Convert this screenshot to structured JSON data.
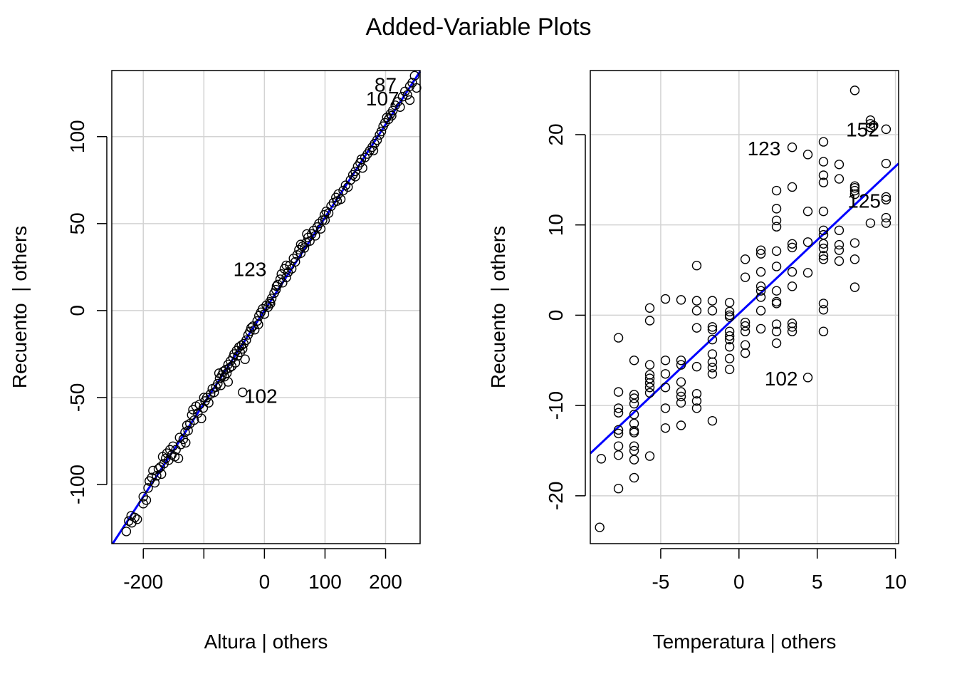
{
  "figure": {
    "title": "Added-Variable Plots"
  },
  "colors": {
    "fit_line": "#0000ff",
    "grid": "#d3d3d3",
    "points": "#000000",
    "frame": "#000000"
  },
  "chart_data": [
    {
      "type": "scatter",
      "title": "",
      "xlabel": "Altura | others",
      "ylabel": "Recuento  | others",
      "xlim": [
        -252,
        257
      ],
      "ylim": [
        -134,
        138
      ],
      "xticks": [
        -200,
        -100,
        0,
        100,
        200
      ],
      "xtick_labels": [
        "-200",
        "",
        "0",
        "100",
        "200"
      ],
      "yticks": [
        -100,
        -50,
        0,
        50,
        100
      ],
      "ytick_labels": [
        "-100",
        "-50",
        "0",
        "50",
        "100"
      ],
      "grid": true,
      "fit_line": {
        "slope": 0.535,
        "intercept": 0.0
      },
      "annotations": [
        {
          "text": "87",
          "x": 200,
          "y": 130
        },
        {
          "text": "107",
          "x": 195,
          "y": 122
        },
        {
          "text": "123",
          "x": -24,
          "y": 24
        },
        {
          "text": "102",
          "x": -6,
          "y": -49
        }
      ],
      "points": [
        [
          -228,
          -127
        ],
        [
          -224,
          -121
        ],
        [
          -220,
          -118
        ],
        [
          -219,
          -122
        ],
        [
          -214,
          -119
        ],
        [
          -200,
          -107
        ],
        [
          -200,
          -111
        ],
        [
          -195,
          -109
        ],
        [
          -192,
          -102
        ],
        [
          -190,
          -98
        ],
        [
          -186,
          -96
        ],
        [
          -184,
          -92
        ],
        [
          -181,
          -99
        ],
        [
          -178,
          -95
        ],
        [
          -175,
          -91
        ],
        [
          -172,
          -90
        ],
        [
          -170,
          -94
        ],
        [
          -168,
          -84
        ],
        [
          -166,
          -88
        ],
        [
          -163,
          -85
        ],
        [
          -161,
          -82
        ],
        [
          -158,
          -86
        ],
        [
          -156,
          -80
        ],
        [
          -153,
          -83
        ],
        [
          -151,
          -78
        ],
        [
          -148,
          -84
        ],
        [
          -146,
          -80
        ],
        [
          -142,
          -85
        ],
        [
          -138,
          -77
        ],
        [
          -134,
          -74
        ],
        [
          -131,
          -70
        ],
        [
          -128,
          -66
        ],
        [
          -126,
          -69
        ],
        [
          -123,
          -65
        ],
        [
          -120,
          -60
        ],
        [
          -118,
          -57
        ],
        [
          -116,
          -63
        ],
        [
          -113,
          -55
        ],
        [
          -110,
          -59
        ],
        [
          -107,
          -54
        ],
        [
          -104,
          -62
        ],
        [
          -101,
          -56
        ],
        [
          -98,
          -52
        ],
        [
          -95,
          -50
        ],
        [
          -92,
          -53
        ],
        [
          -89,
          -48
        ],
        [
          -86,
          -45
        ],
        [
          -83,
          -47
        ],
        [
          -80,
          -44
        ],
        [
          -77,
          -42
        ],
        [
          -74,
          -39
        ],
        [
          -72,
          -43
        ],
        [
          -70,
          -37
        ],
        [
          -68,
          -35
        ],
        [
          -66,
          -38
        ],
        [
          -64,
          -34
        ],
        [
          -62,
          -36
        ],
        [
          -60,
          -31
        ],
        [
          -58,
          -33
        ],
        [
          -56,
          -29
        ],
        [
          -54,
          -32
        ],
        [
          -52,
          -27
        ],
        [
          -50,
          -25
        ],
        [
          -48,
          -30
        ],
        [
          -46,
          -23
        ],
        [
          -44,
          -26
        ],
        [
          -42,
          -21
        ],
        [
          -40,
          -24
        ],
        [
          -38,
          -20
        ],
        [
          -36,
          -22
        ],
        [
          -34,
          -19
        ],
        [
          -32,
          -28
        ],
        [
          -30,
          -17
        ],
        [
          -27,
          -14
        ],
        [
          -24,
          -12
        ],
        [
          -22,
          -10
        ],
        [
          -19,
          -9
        ],
        [
          -16,
          -11
        ],
        [
          -12,
          -6
        ],
        [
          -9,
          -3
        ],
        [
          -6,
          -1
        ],
        [
          -3,
          1
        ],
        [
          0,
          -2
        ],
        [
          3,
          3
        ],
        [
          6,
          2
        ],
        [
          9,
          5
        ],
        [
          12,
          7
        ],
        [
          16,
          10
        ],
        [
          19,
          12
        ],
        [
          22,
          15
        ],
        [
          26,
          18
        ],
        [
          28,
          21
        ],
        [
          30,
          16
        ],
        [
          33,
          24
        ],
        [
          36,
          19
        ],
        [
          39,
          22
        ],
        [
          42,
          26
        ],
        [
          45,
          24
        ],
        [
          48,
          30
        ],
        [
          51,
          28
        ],
        [
          54,
          32
        ],
        [
          57,
          35
        ],
        [
          60,
          33
        ],
        [
          63,
          37
        ],
        [
          66,
          36
        ],
        [
          69,
          39
        ],
        [
          72,
          42
        ],
        [
          75,
          40
        ],
        [
          78,
          44
        ],
        [
          81,
          46
        ],
        [
          84,
          43
        ],
        [
          87,
          48
        ],
        [
          90,
          50
        ],
        [
          93,
          47
        ],
        [
          96,
          52
        ],
        [
          99,
          55
        ],
        [
          102,
          57
        ],
        [
          106,
          56
        ],
        [
          110,
          60
        ],
        [
          114,
          62
        ],
        [
          118,
          65
        ],
        [
          122,
          67
        ],
        [
          126,
          64
        ],
        [
          130,
          69
        ],
        [
          134,
          72
        ],
        [
          138,
          71
        ],
        [
          142,
          75
        ],
        [
          146,
          78
        ],
        [
          150,
          80
        ],
        [
          154,
          83
        ],
        [
          158,
          85
        ],
        [
          162,
          82
        ],
        [
          166,
          88
        ],
        [
          170,
          90
        ],
        [
          174,
          92
        ],
        [
          178,
          94
        ],
        [
          182,
          96
        ],
        [
          186,
          98
        ],
        [
          190,
          101
        ],
        [
          193,
          103
        ],
        [
          196,
          106
        ],
        [
          199,
          108
        ],
        [
          202,
          111
        ],
        [
          205,
          110
        ],
        [
          208,
          113
        ],
        [
          212,
          115
        ],
        [
          216,
          118
        ],
        [
          220,
          120
        ],
        [
          224,
          117
        ],
        [
          228,
          123
        ],
        [
          232,
          126
        ],
        [
          236,
          124
        ],
        [
          240,
          129
        ],
        [
          244,
          131
        ],
        [
          248,
          135
        ],
        [
          251,
          128
        ],
        [
          -140,
          -73
        ],
        [
          -60,
          -41
        ],
        [
          -36,
          -47
        ],
        [
          36,
          26
        ],
        [
          100,
          52
        ],
        [
          150,
          77
        ],
        [
          -100,
          -50
        ],
        [
          -75,
          -36
        ],
        [
          20,
          14
        ],
        [
          70,
          44
        ],
        [
          120,
          63
        ],
        [
          180,
          92
        ],
        [
          210,
          112
        ],
        [
          -210,
          -120
        ],
        [
          -130,
          -76
        ],
        [
          -10,
          -8
        ],
        [
          10,
          4
        ],
        [
          60,
          38
        ],
        [
          160,
          87
        ],
        [
          240,
          121
        ]
      ]
    },
    {
      "type": "scatter",
      "title": "",
      "xlabel": "Temperatura | others",
      "ylabel": "Recuento  | others",
      "xlim": [
        -9.5,
        10.2
      ],
      "ylim": [
        -25.3,
        27.1
      ],
      "xticks": [
        -5,
        0,
        5,
        10
      ],
      "xtick_labels": [
        "-5",
        "0",
        "5",
        "10"
      ],
      "yticks": [
        -20,
        -10,
        0,
        10,
        20
      ],
      "ytick_labels": [
        "-20",
        "-10",
        "0",
        "10",
        "20"
      ],
      "grid": true,
      "fit_line": {
        "slope": 1.63,
        "intercept": 0.18
      },
      "annotations": [
        {
          "text": "123",
          "x": 1.6,
          "y": 18.5
        },
        {
          "text": "152",
          "x": 7.9,
          "y": 20.6
        },
        {
          "text": "125",
          "x": 8.0,
          "y": 12.7
        },
        {
          "text": "102",
          "x": 2.7,
          "y": -7.0
        }
      ],
      "points": [
        [
          -8.9,
          -23.5
        ],
        [
          -8.8,
          -15.9
        ],
        [
          -7.7,
          -19.2
        ],
        [
          -7.7,
          -15.5
        ],
        [
          -7.7,
          -14.5
        ],
        [
          -7.7,
          -13.1
        ],
        [
          -7.7,
          -12.7
        ],
        [
          -7.7,
          -10.8
        ],
        [
          -7.7,
          -10.3
        ],
        [
          -7.7,
          -8.5
        ],
        [
          -7.7,
          -2.5
        ],
        [
          -6.7,
          -18.0
        ],
        [
          -6.7,
          -16.0
        ],
        [
          -6.7,
          -15.0
        ],
        [
          -6.7,
          -14.5
        ],
        [
          -6.7,
          -13.0
        ],
        [
          -6.7,
          -12.8
        ],
        [
          -6.7,
          -12.0
        ],
        [
          -6.7,
          -11.0
        ],
        [
          -6.7,
          -9.8
        ],
        [
          -6.7,
          -9.2
        ],
        [
          -6.7,
          -8.8
        ],
        [
          -6.7,
          -5.0
        ],
        [
          -5.7,
          -15.6
        ],
        [
          -5.7,
          -8.6
        ],
        [
          -5.7,
          -8.0
        ],
        [
          -5.7,
          -7.5
        ],
        [
          -5.7,
          -7.0
        ],
        [
          -5.7,
          -6.6
        ],
        [
          -5.7,
          -5.5
        ],
        [
          -5.7,
          -0.6
        ],
        [
          -5.7,
          0.8
        ],
        [
          -4.7,
          -12.5
        ],
        [
          -4.7,
          -10.3
        ],
        [
          -4.7,
          -8.0
        ],
        [
          -4.7,
          -6.5
        ],
        [
          -4.7,
          -5.0
        ],
        [
          -4.7,
          1.8
        ],
        [
          -3.7,
          -12.2
        ],
        [
          -3.7,
          -9.7
        ],
        [
          -3.7,
          -9.0
        ],
        [
          -3.7,
          -8.5
        ],
        [
          -3.7,
          -7.4
        ],
        [
          -3.7,
          -5.5
        ],
        [
          -3.7,
          -5.0
        ],
        [
          -3.7,
          1.7
        ],
        [
          -2.7,
          -10.3
        ],
        [
          -2.7,
          -9.5
        ],
        [
          -2.7,
          -8.7
        ],
        [
          -2.7,
          -5.7
        ],
        [
          -2.7,
          -1.4
        ],
        [
          -2.7,
          0.5
        ],
        [
          -2.7,
          1.6
        ],
        [
          -2.7,
          5.5
        ],
        [
          -1.7,
          -11.7
        ],
        [
          -1.7,
          -6.5
        ],
        [
          -1.7,
          -5.8
        ],
        [
          -1.7,
          -5.2
        ],
        [
          -1.7,
          -4.3
        ],
        [
          -1.7,
          -2.7
        ],
        [
          -1.7,
          -1.6
        ],
        [
          -1.7,
          -1.3
        ],
        [
          -1.7,
          0.5
        ],
        [
          -1.7,
          1.6
        ],
        [
          -0.6,
          -6.0
        ],
        [
          -0.6,
          -4.8
        ],
        [
          -0.6,
          -3.5
        ],
        [
          -0.6,
          -2.7
        ],
        [
          -0.6,
          -2.3
        ],
        [
          -0.6,
          -1.8
        ],
        [
          -0.6,
          -0.2
        ],
        [
          -0.6,
          0.0
        ],
        [
          -0.6,
          0.4
        ],
        [
          -0.6,
          1.4
        ],
        [
          0.4,
          -4.2
        ],
        [
          0.4,
          -3.3
        ],
        [
          0.4,
          -1.8
        ],
        [
          0.4,
          -1.2
        ],
        [
          0.4,
          -0.8
        ],
        [
          0.4,
          4.2
        ],
        [
          0.4,
          6.2
        ],
        [
          1.4,
          -1.5
        ],
        [
          1.4,
          0.5
        ],
        [
          1.4,
          2.0
        ],
        [
          1.4,
          2.7
        ],
        [
          1.4,
          3.2
        ],
        [
          1.4,
          4.8
        ],
        [
          1.4,
          6.8
        ],
        [
          1.4,
          7.2
        ],
        [
          2.4,
          -3.1
        ],
        [
          2.4,
          -1.8
        ],
        [
          2.4,
          -1.0
        ],
        [
          2.4,
          1.3
        ],
        [
          2.4,
          1.5
        ],
        [
          2.4,
          2.7
        ],
        [
          2.4,
          5.4
        ],
        [
          2.4,
          7.1
        ],
        [
          2.4,
          9.8
        ],
        [
          2.4,
          10.5
        ],
        [
          2.4,
          11.8
        ],
        [
          2.4,
          13.8
        ],
        [
          3.4,
          -1.8
        ],
        [
          3.4,
          -1.3
        ],
        [
          3.4,
          -0.9
        ],
        [
          3.4,
          3.2
        ],
        [
          3.4,
          4.8
        ],
        [
          3.4,
          7.5
        ],
        [
          3.4,
          7.9
        ],
        [
          3.4,
          14.2
        ],
        [
          3.4,
          18.6
        ],
        [
          4.4,
          -6.9
        ],
        [
          4.4,
          4.7
        ],
        [
          4.4,
          8.1
        ],
        [
          4.4,
          11.5
        ],
        [
          4.4,
          17.8
        ],
        [
          5.4,
          -1.8
        ],
        [
          5.4,
          0.6
        ],
        [
          5.4,
          1.3
        ],
        [
          5.4,
          6.2
        ],
        [
          5.4,
          6.6
        ],
        [
          5.4,
          7.4
        ],
        [
          5.4,
          7.9
        ],
        [
          5.4,
          8.9
        ],
        [
          5.4,
          9.4
        ],
        [
          5.4,
          11.5
        ],
        [
          5.4,
          14.7
        ],
        [
          5.4,
          15.5
        ],
        [
          5.4,
          17.0
        ],
        [
          5.4,
          19.2
        ],
        [
          6.4,
          6.0
        ],
        [
          6.4,
          7.2
        ],
        [
          6.4,
          7.8
        ],
        [
          6.4,
          9.4
        ],
        [
          6.4,
          15.1
        ],
        [
          6.4,
          16.7
        ],
        [
          7.4,
          3.1
        ],
        [
          7.4,
          6.2
        ],
        [
          7.4,
          8.0
        ],
        [
          7.4,
          13.4
        ],
        [
          7.4,
          13.8
        ],
        [
          7.4,
          14.1
        ],
        [
          7.4,
          24.9
        ],
        [
          8.4,
          10.2
        ],
        [
          8.4,
          20.8
        ],
        [
          8.4,
          21.6
        ],
        [
          8.6,
          21.0
        ],
        [
          9.4,
          10.2
        ],
        [
          9.4,
          10.8
        ],
        [
          9.4,
          12.8
        ],
        [
          9.4,
          13.1
        ],
        [
          9.4,
          16.8
        ],
        [
          9.4,
          20.6
        ],
        [
          7.4,
          14.3
        ],
        [
          8.4,
          21.2
        ]
      ]
    }
  ]
}
